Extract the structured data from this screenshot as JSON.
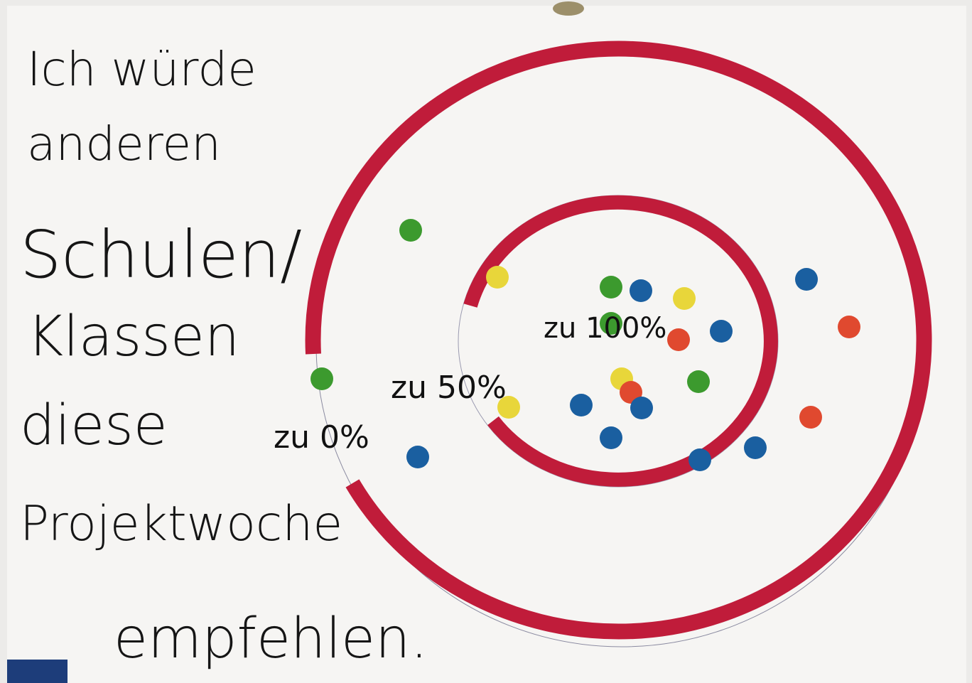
{
  "poster": {
    "lines": [
      "Ich würde",
      "anderen",
      "Schulen/",
      "Klassen",
      "diese",
      "Projektwoche",
      "empfehlen."
    ],
    "ring_labels": [
      "zu 100%",
      "zu 50%",
      "zu 0%"
    ]
  }
}
